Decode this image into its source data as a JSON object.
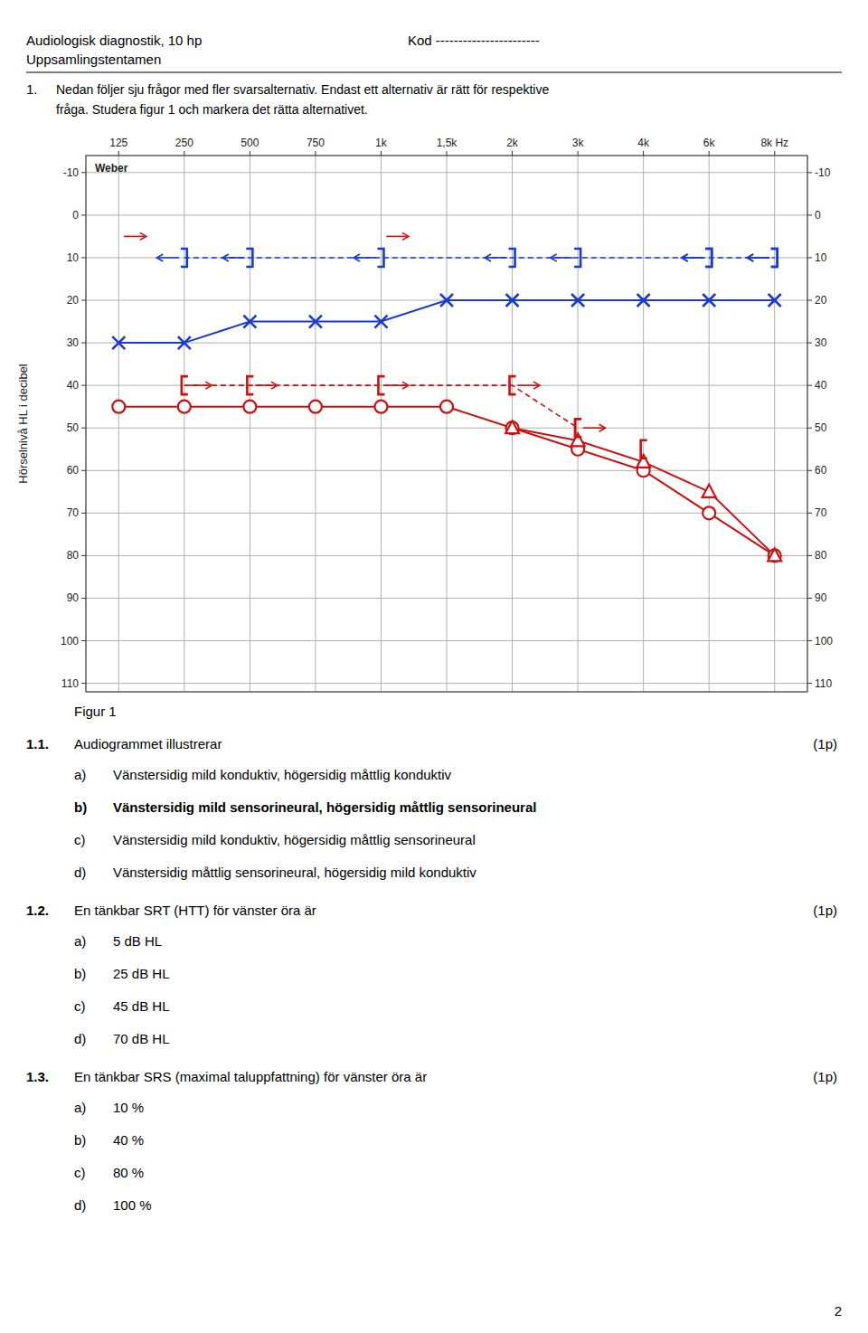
{
  "chart_data": {
    "type": "line",
    "y_label": "Hörselnivå HL i decibel",
    "categories": [
      "125",
      "250",
      "500",
      "750",
      "1k",
      "1,5k",
      "2k",
      "3k",
      "4k",
      "6k",
      "8k Hz"
    ],
    "ylim": [
      112,
      -14
    ],
    "yticks": [
      -10,
      0,
      10,
      20,
      30,
      40,
      50,
      60,
      70,
      80,
      90,
      100,
      110
    ],
    "y2lim": [
      112,
      -14
    ],
    "y2ticks": [
      -10,
      0,
      10,
      20,
      30,
      40,
      50,
      60,
      70,
      80,
      90,
      100,
      110
    ],
    "grid": true,
    "annotations": [
      {
        "text": "Weber"
      }
    ],
    "series": [
      {
        "color": "#1a3bcc",
        "marker": "x",
        "line_style": "solid",
        "x": [
          "125",
          "250",
          "500",
          "750",
          "1k",
          "1,5k",
          "2k",
          "3k",
          "4k",
          "6k",
          "8k Hz"
        ],
        "values": [
          30,
          30,
          25,
          25,
          25,
          20,
          20,
          20,
          20,
          20,
          20
        ]
      },
      {
        "color": "#1a3bcc",
        "marker": "bracket-right-arrow-left",
        "line_style": "dashed",
        "x": [
          "250",
          "500",
          "1k",
          "2k",
          "3k",
          "6k",
          "8k Hz"
        ],
        "values": [
          10,
          10,
          10,
          10,
          10,
          10,
          10
        ]
      },
      {
        "color": "#cc1111",
        "marker": "circle",
        "line_style": "solid",
        "x": [
          "125",
          "250",
          "500",
          "750",
          "1k",
          "1,5k",
          "2k",
          "3k",
          "4k",
          "6k",
          "8k Hz"
        ],
        "values": [
          45,
          45,
          45,
          45,
          45,
          45,
          50,
          55,
          60,
          70,
          80
        ]
      },
      {
        "color": "#cc1111",
        "marker": "bracket-left-arrow-right",
        "line_style": "dashed",
        "x": [
          "250",
          "500",
          "1k",
          "2k",
          "3k"
        ],
        "values": [
          40,
          40,
          40,
          40,
          50
        ]
      },
      {
        "color": "#cc1111",
        "marker": "triangle",
        "line_style": "solid",
        "x": [
          "2k",
          "3k",
          "4k",
          "6k",
          "8k Hz"
        ],
        "values": [
          50,
          53,
          58,
          65,
          80
        ]
      },
      {
        "color": "#cc1111",
        "marker": "bracket-left",
        "line_style": "none",
        "x": [
          "3k",
          "4k"
        ],
        "values": [
          50,
          55
        ]
      },
      {
        "color": "#1a3bcc",
        "marker": "bracket-right-arrow-left",
        "line_style": "none",
        "x": [
          "6k",
          "8k Hz"
        ],
        "values": [
          10,
          10
        ]
      },
      {
        "color": "#cc1111",
        "marker": "arrow-right",
        "line_style": "none",
        "x": [
          "125",
          "1k"
        ],
        "values": [
          5,
          5
        ]
      }
    ]
  },
  "page": {
    "header_left": [
      "Audiologisk diagnostik, 10 hp",
      "Uppsamlingstentamen"
    ],
    "header_right": "Kod -----------------------",
    "intro_number": "1.",
    "intro_lines": [
      "Nedan följer sju frågor med fler svarsalternativ. Endast ett alternativ är rätt för respektive",
      "fråga. Studera figur 1 och markera det rätta alternativet."
    ],
    "caption": "Figur 1",
    "questions": [
      {
        "number": "1.1.",
        "text": "Audiogrammet illustrerar",
        "points": "(1p)",
        "options": [
          {
            "letter": "a)",
            "text": "Vänstersidig mild konduktiv, högersidig måttlig konduktiv",
            "correct": false
          },
          {
            "letter": "b)",
            "text": "Vänstersidig mild sensorineural, högersidig måttlig sensorineural",
            "correct": true
          },
          {
            "letter": "c)",
            "text": "Vänstersidig mild konduktiv, högersidig måttlig sensorineural",
            "correct": false
          },
          {
            "letter": "d)",
            "text": "Vänstersidig måttlig sensorineural, högersidig mild konduktiv",
            "correct": false
          }
        ]
      },
      {
        "number": "1.2.",
        "text": "En tänkbar SRT (HTT) för vänster öra är",
        "points": "(1p)",
        "options": [
          {
            "letter": "a)",
            "text": "5 dB HL"
          },
          {
            "letter": "b)",
            "text": "25 dB HL"
          },
          {
            "letter": "c)",
            "text": "45 dB HL"
          },
          {
            "letter": "d)",
            "text": "70 dB HL"
          }
        ]
      },
      {
        "number": "1.3.",
        "text": "En tänkbar SRS (maximal taluppfattning) för vänster öra är",
        "points": "(1p)",
        "options": [
          {
            "letter": "a)",
            "text": "10 %"
          },
          {
            "letter": "b)",
            "text": "40 %"
          },
          {
            "letter": "c)",
            "text": "80 %"
          },
          {
            "letter": "d)",
            "text": "100 %"
          }
        ]
      }
    ],
    "page_number": "2"
  }
}
